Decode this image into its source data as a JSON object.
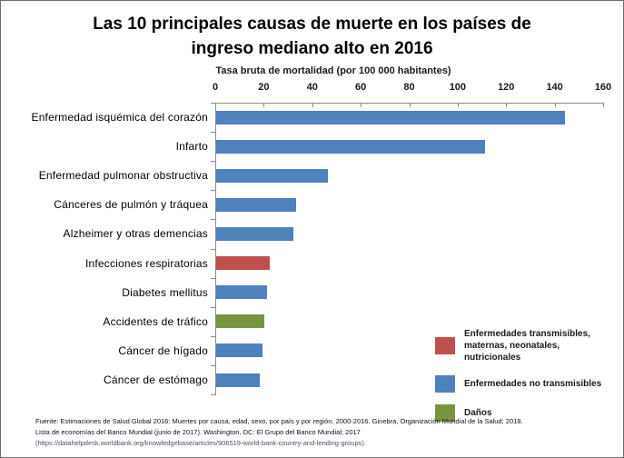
{
  "chart_data": {
    "type": "bar",
    "orientation": "horizontal",
    "title": "Las 10 principales causas de muerte en los países de ingreso mediano alto en 2016",
    "xlabel": "Tasa bruta de mortalidad (por 100 000 habitantes)",
    "ylabel": "",
    "xlim": [
      0,
      160
    ],
    "xticks": [
      0,
      20,
      40,
      60,
      80,
      100,
      120,
      140,
      160
    ],
    "grid": false,
    "categories": [
      "Enfermedad isquémica del corazón",
      "Infarto",
      "Enfermedad pulmonar obstructiva",
      "Cánceres de pulmón y tráquea",
      "Alzheimer y otras demencias",
      "Infecciones respiratorias",
      "Diabetes mellitus",
      "Accidentes de tráfico",
      "Cáncer de hígado",
      "Cáncer de estómago"
    ],
    "values": [
      144,
      111,
      46,
      33,
      32,
      22,
      21,
      20,
      19,
      18
    ],
    "bar_groups": [
      "ncd",
      "ncd",
      "ncd",
      "ncd",
      "ncd",
      "cmnn",
      "ncd",
      "injury",
      "ncd",
      "ncd"
    ],
    "group_colors": {
      "cmnn": "#C0504D",
      "ncd": "#4F81BD",
      "injury": "#789440"
    },
    "axis_color": "#8C8C8C",
    "legend_position": "bottom-right",
    "legend": [
      {
        "label": "Enfermedades transmisibles, maternas, neonatales, nutricionales",
        "color": "#C0504D"
      },
      {
        "label": "Enfermedades no transmisibles",
        "color": "#4F81BD"
      },
      {
        "label": "Daños",
        "color": "#789440"
      }
    ]
  },
  "footer": {
    "lines": [
      "Fuente: Estimaciones de Salud Global 2016: Muertes por causa, edad, sexo, por país y por región, 2000-2016. Ginebra, Organización Mundial de la Salud; 2018.",
      "Lista de economías del Banco Mundial (junio de 2017). Washington, DC: El Grupo del Banco Mundial; 2017",
      "(https://datahelpdesk.worldbank.org/knowledgebase/articles/906519-world-bank-country-and-lending-groups)."
    ]
  }
}
